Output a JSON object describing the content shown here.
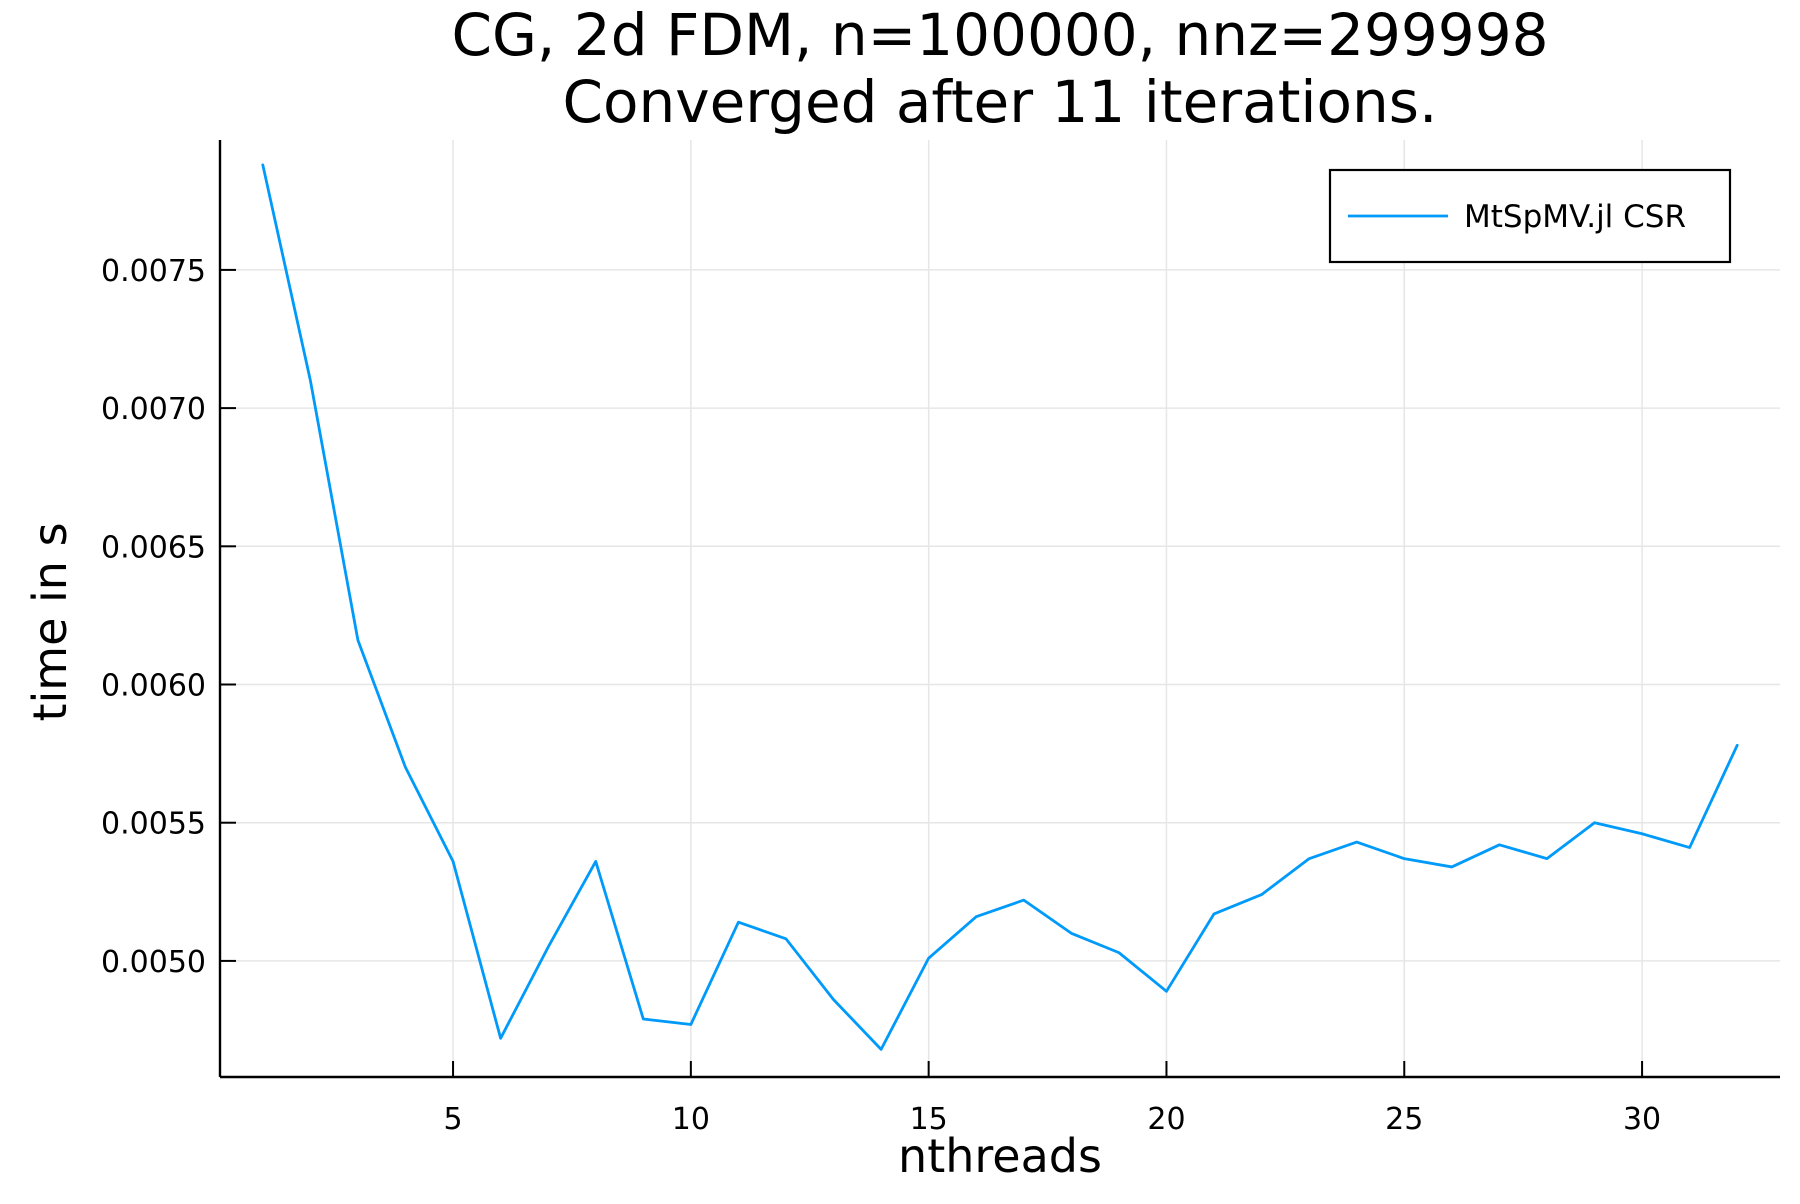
{
  "chart_data": {
    "type": "line",
    "title": "CG, 2d FDM, n=100000, nnz=299998",
    "subtitle": "Converged after 11 iterations.",
    "xlabel": "nthreads",
    "ylabel": "time in s",
    "xlim": [
      0.1,
      32.9
    ],
    "ylim": [
      0.00458,
      0.00797
    ],
    "x_ticks": [
      5,
      10,
      15,
      20,
      25,
      30
    ],
    "x_tick_labels": [
      "5",
      "10",
      "15",
      "20",
      "25",
      "30"
    ],
    "y_ticks": [
      0.005,
      0.0055,
      0.006,
      0.0065,
      0.007,
      0.0075
    ],
    "y_tick_labels": [
      "0.0050",
      "0.0055",
      "0.0060",
      "0.0065",
      "0.0070",
      "0.0075"
    ],
    "grid": true,
    "legend_position": "top-right",
    "series": [
      {
        "name": "MtSpMV.jl CSR",
        "color": "#009AFA",
        "x": [
          1,
          2,
          3,
          4,
          5,
          6,
          7,
          8,
          9,
          10,
          11,
          12,
          13,
          14,
          15,
          16,
          17,
          18,
          19,
          20,
          21,
          22,
          23,
          24,
          25,
          26,
          27,
          28,
          29,
          30,
          31,
          32
        ],
        "values": [
          0.00788,
          0.0071,
          0.00616,
          0.0057,
          0.00536,
          0.00472,
          0.00505,
          0.00536,
          0.00479,
          0.00477,
          0.00514,
          0.00508,
          0.00486,
          0.00468,
          0.00501,
          0.00516,
          0.00522,
          0.0051,
          0.00503,
          0.00489,
          0.00517,
          0.00524,
          0.00537,
          0.00543,
          0.00537,
          0.00534,
          0.00542,
          0.00537,
          0.0055,
          0.00546,
          0.00541,
          0.00578
        ]
      }
    ]
  }
}
